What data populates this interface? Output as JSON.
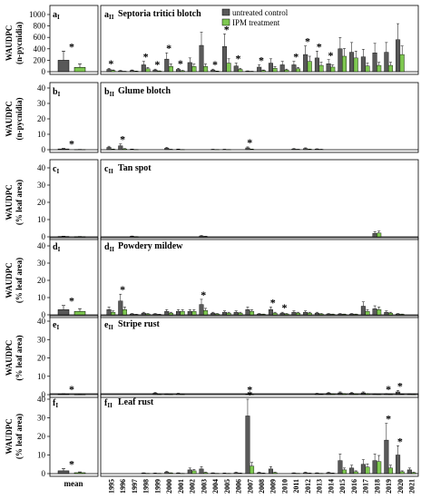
{
  "legend": {
    "untreated": "untreated control",
    "ipm": "IPM treatment",
    "colors": {
      "untreated": "#595959",
      "ipm": "#7ec850"
    }
  },
  "x_tick_labels": [
    "1995",
    "1996",
    "1997",
    "1998",
    "1999",
    "2000",
    "2001",
    "2002",
    "2003",
    "2004",
    "2005",
    "2006",
    "2007",
    "2008",
    "2009",
    "2010",
    "2011",
    "2012",
    "2013",
    "2014",
    "2015",
    "2016",
    "2017",
    "2018",
    "2019",
    "2020",
    "2021"
  ],
  "mean_label": "mean",
  "chart_data": [
    {
      "type": "bar",
      "panel_left": "a",
      "panel_right": "a",
      "title": "Septoria tritici blotch",
      "ylabel": [
        "WAUDPC",
        "(n-pycnidia)"
      ],
      "ylim": [
        0,
        1000
      ],
      "yticks": [
        0,
        200,
        400,
        600,
        800,
        1000
      ],
      "mean": {
        "untreated": 200,
        "ipm": 75,
        "sig": true
      },
      "untreated": [
        40,
        15,
        20,
        120,
        30,
        220,
        40,
        160,
        460,
        30,
        440,
        100,
        10,
        80,
        150,
        120,
        120,
        300,
        240,
        140,
        400,
        340,
        260,
        330,
        340,
        560,
        0
      ],
      "ipm": [
        20,
        5,
        8,
        50,
        10,
        90,
        15,
        90,
        90,
        8,
        150,
        40,
        5,
        20,
        60,
        30,
        50,
        180,
        110,
        80,
        270,
        240,
        100,
        110,
        110,
        300,
        0
      ],
      "sig": [
        true,
        false,
        false,
        true,
        true,
        true,
        true,
        false,
        false,
        true,
        true,
        true,
        false,
        true,
        false,
        false,
        true,
        true,
        true,
        true,
        false,
        false,
        false,
        false,
        false,
        false,
        false
      ]
    },
    {
      "type": "bar",
      "panel_left": "b",
      "panel_right": "b",
      "title": "Glume blotch",
      "ylabel": [
        "WAUDPC",
        "(n-pycnidia)"
      ],
      "ylim": [
        0,
        40
      ],
      "yticks": [
        0,
        10,
        20,
        30,
        40
      ],
      "mean": {
        "untreated": 0.5,
        "ipm": 0.1,
        "sig": true
      },
      "untreated": [
        1.5,
        2.5,
        0.3,
        0,
        0,
        1.0,
        0.3,
        0,
        0,
        0.2,
        0.2,
        0,
        1.2,
        0,
        0,
        0,
        0.5,
        0.8,
        0.4,
        0,
        0,
        0,
        0,
        0,
        0,
        0,
        0
      ],
      "ipm": [
        0.3,
        0.5,
        0.1,
        0,
        0,
        0.2,
        0.1,
        0,
        0,
        0.1,
        0.1,
        0,
        0.3,
        0,
        0,
        0,
        0.2,
        0.3,
        0.2,
        0,
        0,
        0,
        0,
        0,
        0,
        0,
        0
      ],
      "sig": [
        false,
        true,
        false,
        false,
        false,
        false,
        false,
        false,
        false,
        false,
        false,
        false,
        true,
        false,
        false,
        false,
        false,
        false,
        false,
        false,
        false,
        false,
        false,
        false,
        false,
        false,
        false
      ]
    },
    {
      "type": "bar",
      "panel_left": "c",
      "panel_right": "c",
      "title": "Tan spot",
      "ylabel": [
        "WAUDPC",
        "(% leaf area)"
      ],
      "ylim": [
        0,
        40
      ],
      "yticks": [
        0,
        10,
        20,
        30,
        40
      ],
      "mean": {
        "untreated": 0.2,
        "ipm": 0.1,
        "sig": false
      },
      "untreated": [
        0,
        0,
        0.3,
        0,
        0,
        0,
        0,
        0,
        0.5,
        0,
        0,
        0,
        0,
        0,
        0,
        0,
        0,
        0,
        0,
        0,
        0,
        0,
        0,
        2.0,
        0,
        0,
        0
      ],
      "ipm": [
        0,
        0,
        0.1,
        0,
        0,
        0,
        0,
        0,
        0.2,
        0,
        0,
        0,
        0,
        0,
        0,
        0,
        0,
        0,
        0,
        0,
        0,
        0,
        0,
        2.2,
        0,
        0,
        0
      ],
      "sig": [
        false,
        false,
        false,
        false,
        false,
        false,
        false,
        false,
        false,
        false,
        false,
        false,
        false,
        false,
        false,
        false,
        false,
        false,
        false,
        false,
        false,
        false,
        false,
        false,
        false,
        false,
        false
      ]
    },
    {
      "type": "bar",
      "panel_left": "d",
      "panel_right": "d",
      "title": "Powdery mildew",
      "ylabel": [
        "WAUDPC",
        "(% leaf area)"
      ],
      "ylim": [
        0,
        40
      ],
      "yticks": [
        0,
        10,
        20,
        30,
        40
      ],
      "mean": {
        "untreated": 3,
        "ipm": 2,
        "sig": true
      },
      "untreated": [
        3,
        8,
        0.5,
        1,
        0.5,
        2,
        2,
        2,
        6,
        1,
        1.5,
        1.5,
        3,
        0.5,
        3,
        1,
        1.5,
        1.5,
        1,
        0.5,
        0.5,
        0.5,
        5,
        3.5,
        1.5,
        0.5,
        0
      ],
      "ipm": [
        1.5,
        3,
        0.2,
        0.5,
        0.2,
        1,
        2,
        2,
        2.5,
        0.5,
        1,
        1,
        2,
        0.3,
        1,
        0.5,
        1,
        1,
        0.5,
        0.3,
        0.3,
        0.3,
        2,
        3,
        1,
        0.3,
        0
      ],
      "sig": [
        false,
        true,
        false,
        false,
        false,
        false,
        false,
        false,
        true,
        false,
        false,
        false,
        false,
        false,
        true,
        true,
        false,
        false,
        false,
        false,
        false,
        false,
        false,
        false,
        false,
        false,
        false
      ]
    },
    {
      "type": "bar",
      "panel_left": "e",
      "panel_right": "e",
      "title": "Stripe rust",
      "ylabel": [
        "WAUDPC",
        "(% leaf area)"
      ],
      "ylim": [
        0,
        40
      ],
      "yticks": [
        0,
        10,
        20,
        30,
        40
      ],
      "mean": {
        "untreated": 0.3,
        "ipm": 0.05,
        "sig": true
      },
      "untreated": [
        0,
        0,
        0,
        0,
        0.8,
        0.3,
        0.5,
        0,
        0,
        0,
        0,
        0,
        0.2,
        0,
        0,
        0,
        0,
        0,
        0.5,
        0.8,
        1.0,
        0.8,
        1.0,
        0.3,
        0.4,
        1.5,
        0.3
      ],
      "ipm": [
        0,
        0,
        0,
        0,
        0.1,
        0.05,
        0.1,
        0,
        0,
        0,
        0,
        0,
        0.05,
        0,
        0,
        0,
        0,
        0,
        0.2,
        0.3,
        0.4,
        0.3,
        0.4,
        0.1,
        0.1,
        0.2,
        0.1
      ],
      "sig": [
        false,
        false,
        false,
        false,
        false,
        false,
        false,
        false,
        false,
        false,
        false,
        false,
        true,
        false,
        false,
        false,
        false,
        false,
        false,
        false,
        false,
        false,
        false,
        false,
        true,
        true,
        false
      ]
    },
    {
      "type": "bar",
      "panel_left": "f",
      "panel_right": "f",
      "title": "Leaf rust",
      "ylabel": [
        "WAUDPC",
        "(% leaf area)"
      ],
      "ylim": [
        0,
        40
      ],
      "yticks": [
        0,
        10,
        20,
        30,
        40
      ],
      "mean": {
        "untreated": 1.5,
        "ipm": 0.5,
        "sig": true
      },
      "untreated": [
        0,
        0,
        0,
        0.3,
        0.2,
        0.8,
        0.3,
        2,
        2.5,
        0.3,
        0.2,
        0.5,
        31,
        0.5,
        2.5,
        0,
        0.3,
        0.5,
        0.3,
        0.5,
        7,
        3,
        5,
        7,
        18,
        10,
        2
      ],
      "ipm": [
        0,
        0,
        0,
        0.1,
        0.1,
        0.3,
        0.1,
        1.5,
        0.5,
        0.1,
        0.1,
        0.2,
        4,
        0.2,
        0.5,
        0,
        0.1,
        0.2,
        0.1,
        0.2,
        2,
        1,
        3.5,
        6.5,
        3,
        1,
        0.5
      ],
      "sig": [
        false,
        false,
        false,
        false,
        false,
        false,
        false,
        false,
        false,
        false,
        false,
        false,
        true,
        false,
        false,
        false,
        false,
        false,
        false,
        false,
        false,
        false,
        false,
        false,
        true,
        true,
        false
      ]
    }
  ]
}
